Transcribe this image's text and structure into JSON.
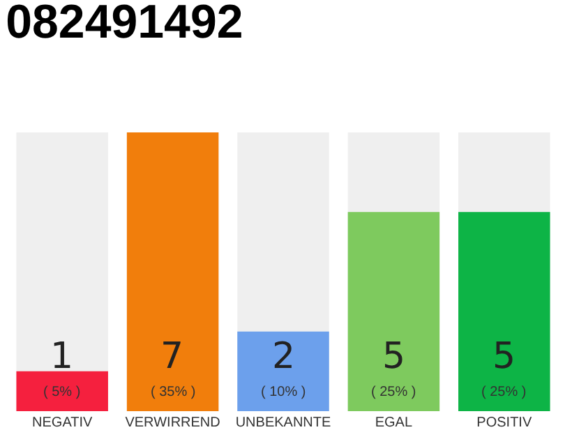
{
  "chart_data": {
    "type": "bar",
    "title": "082491492",
    "categories": [
      "NEGATIV",
      "VERWIRREND",
      "UNBEKANNTE",
      "EGAL",
      "POSITIV"
    ],
    "values": [
      1,
      7,
      2,
      5,
      5
    ],
    "colors": [
      "#f5203e",
      "#f17e0c",
      "#6ca0ec",
      "#7eca5e",
      "#0db446"
    ],
    "ylim": [
      0,
      7
    ],
    "data_labels": true,
    "grid": false,
    "legend": false,
    "annotations": [
      {
        "text": "( 5% )",
        "x": "NEGATIV",
        "y": 0
      },
      {
        "text": "( 35% )",
        "x": "VERWIRREND",
        "y": 0
      },
      {
        "text": "( 10% )",
        "x": "UNBEKANNTE",
        "y": 0
      },
      {
        "text": "( 25% )",
        "x": "EGAL",
        "y": 0
      },
      {
        "text": "( 25% )",
        "x": "POSITIV",
        "y": 0
      }
    ]
  }
}
